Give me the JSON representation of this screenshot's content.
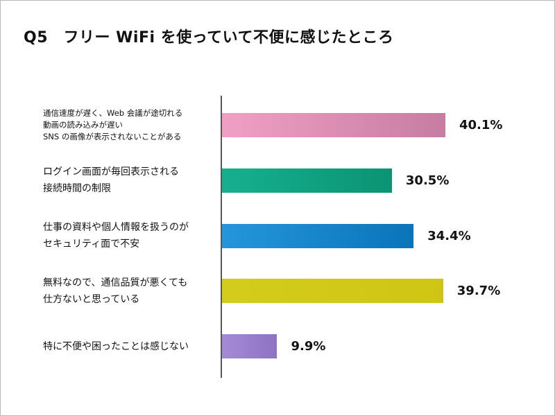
{
  "chart_data": {
    "type": "bar",
    "orientation": "horizontal",
    "title": "Q5　フリー WiFi を使っていて不便に感じたところ",
    "xlim": [
      0,
      50
    ],
    "grid": false,
    "categories": [
      [
        "通信速度が遅く、Web 会議が途切れる",
        "動画の読み込みが遅い",
        "SNS の画像が表示されないことがある"
      ],
      [
        "ログイン画面が毎回表示される",
        "接続時間の制限"
      ],
      [
        "仕事の資料や個人情報を扱うのが",
        "セキュリティ面で不安"
      ],
      [
        "無料なので、通信品質が悪くても",
        "仕方ないと思っている"
      ],
      [
        "特に不便や困ったことは感じない"
      ]
    ],
    "values": [
      40.1,
      30.5,
      34.4,
      39.7,
      9.9
    ],
    "data_labels": [
      "40.1%",
      "30.5%",
      "34.4%",
      "39.7%",
      "9.9%"
    ],
    "colors": [
      [
        "#f0a0c4",
        "#c77ca2"
      ],
      [
        "#16b08e",
        "#0a9474"
      ],
      [
        "#2596dc",
        "#0a74b8"
      ],
      [
        "#d4cc1c",
        "#cfc514"
      ],
      [
        "#a58bd6",
        "#8e72c4"
      ]
    ]
  }
}
